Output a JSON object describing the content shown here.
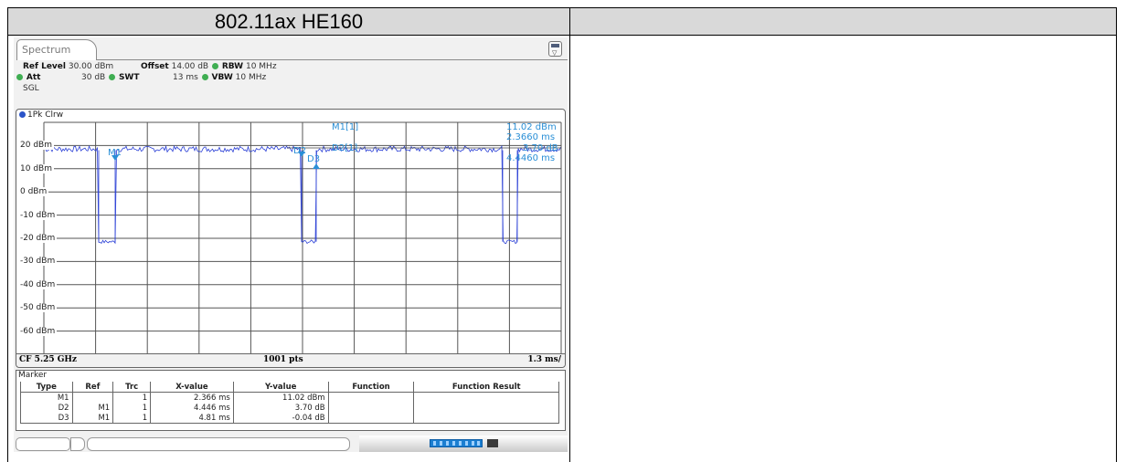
{
  "header": {
    "title": "802.11ax HE160"
  },
  "tab": {
    "label": "Spectrum"
  },
  "settings": {
    "ref_level_label": "Ref Level",
    "ref_level_value": "30.00 dBm",
    "offset_label": "Offset",
    "offset_value": "14.00 dB",
    "rbw_label": "RBW",
    "rbw_value": "10 MHz",
    "att_label": "Att",
    "att_value": "30 dB",
    "swt_label": "SWT",
    "swt_value": "13 ms",
    "vbw_label": "VBW",
    "vbw_value": "10 MHz",
    "sgl": "SGL"
  },
  "trace": {
    "label": "1Pk Clrw"
  },
  "diagram": {
    "y_labels": [
      "20 dBm",
      "10 dBm",
      "0 dBm",
      "-10 dBm",
      "-20 dBm",
      "-30 dBm",
      "-40 dBm",
      "-50 dBm",
      "-60 dBm"
    ],
    "marker_info": {
      "m1_label": "M1[1]",
      "m1_level": "11.02 dBm",
      "m1_time": "2.3660 ms",
      "d2_label": "D2[1]",
      "d2_level": "3.70 dB",
      "d2_time": "4.4460 ms"
    },
    "trace_markers": {
      "m1": "M1",
      "d2": "D2",
      "d3": "D3"
    },
    "footer": {
      "cf": "CF 5.25 GHz",
      "pts": "1001 pts",
      "div": "1.3 ms/"
    }
  },
  "marker_table": {
    "title": "Marker",
    "headers": [
      "Type",
      "Ref",
      "Trc",
      "X-value",
      "Y-value",
      "Function",
      "Function Result"
    ],
    "rows": [
      [
        "M1",
        "",
        "1",
        "2.366 ms",
        "11.02 dBm",
        "",
        ""
      ],
      [
        "D2",
        "M1",
        "1",
        "4.446 ms",
        "3.70 dB",
        "",
        ""
      ],
      [
        "D3",
        "M1",
        "1",
        "4.81 ms",
        "-0.04 dB",
        "",
        ""
      ]
    ]
  },
  "colors": {
    "trace": "#2a3fd6",
    "marker": "#2a8fd6",
    "progress": "#1c7fd1"
  }
}
